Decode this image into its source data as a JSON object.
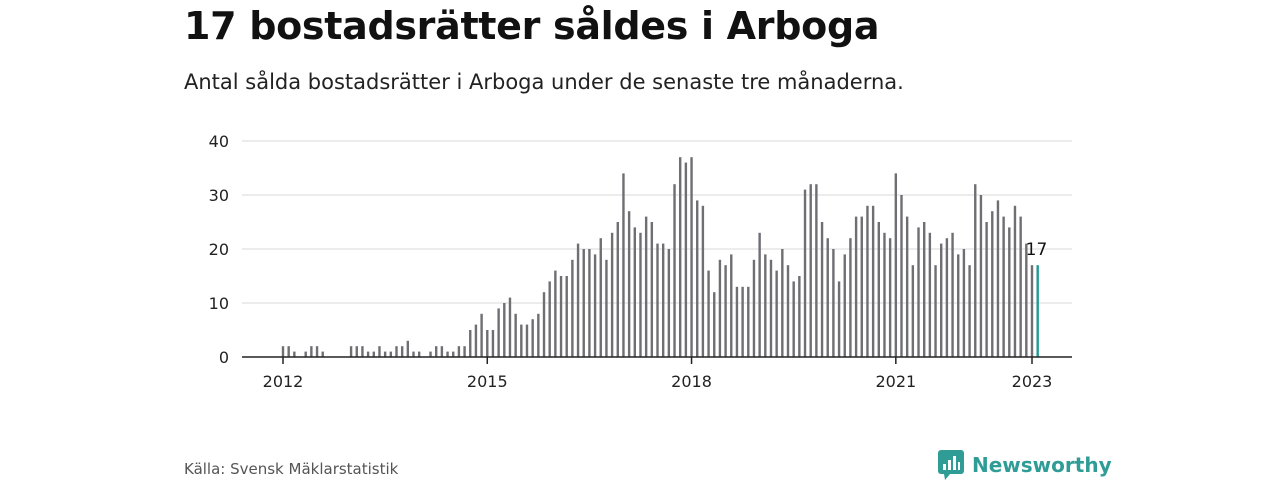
{
  "header": {
    "title": "17 bostadsrätter såldes i Arboga",
    "subtitle": "Antal sålda bostadsrätter i Arboga under de senaste tre månaderna."
  },
  "footer": {
    "source": "Källa: Svensk Mäklarstatistik",
    "brand": "Newsworthy",
    "brand_icon": "newsworthy-logo-icon"
  },
  "colors": {
    "bar": "#6e6e73",
    "highlight": "#1f9a94",
    "grid": "#d9d9d9",
    "brand": "#2f9c95"
  },
  "chart_data": {
    "type": "bar",
    "title": "17 bostadsrätter såldes i Arboga",
    "subtitle": "Antal sålda bostadsrätter i Arboga under de senaste tre månaderna.",
    "x_start": "2012-01",
    "interval": "month",
    "ylim": [
      0,
      40
    ],
    "yticks": [
      0,
      10,
      20,
      30,
      40
    ],
    "xticks": [
      "2012",
      "2015",
      "2018",
      "2021",
      "2023"
    ],
    "grid": true,
    "annotation": {
      "label": "17",
      "value": 17,
      "x": "2023-01"
    },
    "values": [
      2,
      2,
      1,
      0,
      1,
      2,
      2,
      1,
      0,
      0,
      0,
      0,
      2,
      2,
      2,
      1,
      1,
      2,
      1,
      1,
      2,
      2,
      3,
      1,
      1,
      0,
      1,
      2,
      2,
      1,
      1,
      2,
      2,
      5,
      6,
      8,
      5,
      5,
      9,
      10,
      11,
      8,
      6,
      6,
      7,
      8,
      12,
      14,
      16,
      15,
      15,
      18,
      21,
      20,
      20,
      19,
      22,
      18,
      23,
      25,
      34,
      27,
      24,
      23,
      26,
      25,
      21,
      21,
      20,
      32,
      37,
      36,
      37,
      29,
      28,
      16,
      12,
      18,
      17,
      19,
      13,
      13,
      13,
      18,
      23,
      19,
      18,
      16,
      20,
      17,
      14,
      15,
      31,
      32,
      32,
      25,
      22,
      20,
      14,
      19,
      22,
      26,
      26,
      28,
      28,
      25,
      23,
      22,
      34,
      30,
      26,
      17,
      24,
      25,
      23,
      17,
      21,
      22,
      23,
      19,
      20,
      17,
      32,
      30,
      25,
      27,
      29,
      26,
      24,
      28,
      26,
      21,
      17,
      17
    ]
  }
}
